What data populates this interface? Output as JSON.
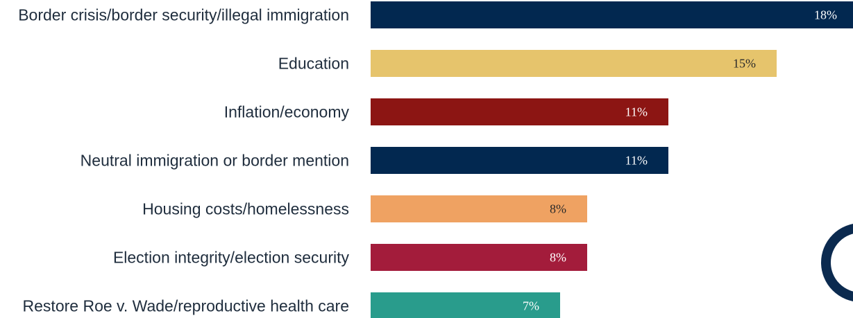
{
  "chart_data": {
    "type": "bar",
    "orientation": "horizontal",
    "categories": [
      "Border crisis/border security/illegal immigration",
      "Education",
      "Inflation/economy",
      "Neutral immigration or border mention",
      "Housing costs/homelessness",
      "Election integrity/election security",
      "Restore Roe v. Wade/reproductive health care"
    ],
    "values": [
      18,
      15,
      11,
      11,
      8,
      8,
      7
    ],
    "value_labels": [
      "18%",
      "15%",
      "11%",
      "11%",
      "8%",
      "8%",
      "7%"
    ],
    "colors": [
      "#022850",
      "#e6c46c",
      "#8c1513",
      "#022850",
      "#efa262",
      "#a31c3b",
      "#299c8c"
    ],
    "label_colors": [
      "#ffffff",
      "#2a2a2a",
      "#ffffff",
      "#ffffff",
      "#2a2a2a",
      "#ffffff",
      "#ffffff"
    ],
    "title": "",
    "xlabel": "",
    "ylabel": "",
    "xlim": [
      0,
      18.5
    ],
    "grid": false,
    "legend": "none"
  },
  "decoration": {
    "logo_color": "#0b2a4f"
  }
}
